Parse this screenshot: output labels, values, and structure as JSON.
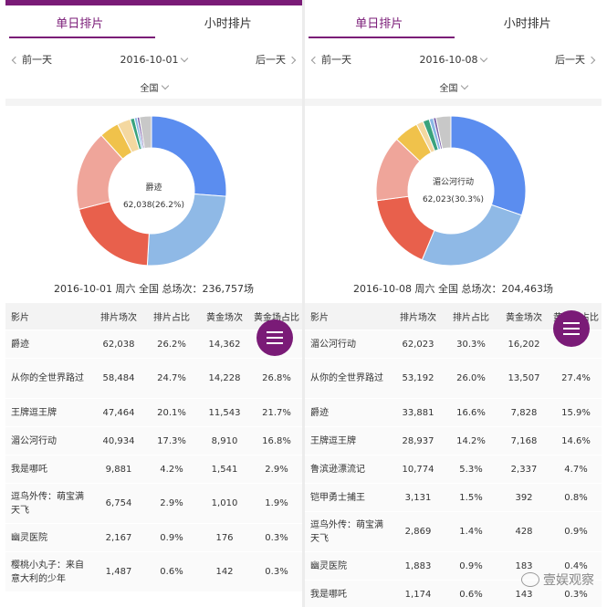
{
  "colors": {
    "brand": "#7a1b77",
    "slices": [
      "#5b8def",
      "#8fb9e6",
      "#e8604c",
      "#efa59a",
      "#f0c24b",
      "#f4d8a0",
      "#3aa37d",
      "#8ab8e6",
      "#7a5fa8",
      "#c8c8c8"
    ]
  },
  "panels": [
    {
      "tabs": [
        "单日排片",
        "小时排片"
      ],
      "prev_label": "前一天",
      "date": "2016-10-01",
      "next_label": "后一天",
      "region": "全国",
      "center_name": "爵迹",
      "center_value": "62,038(26.2%)",
      "summary": "2016-10-01 周六 全国 总场次：236,757场",
      "headers": [
        "影片",
        "排片场次",
        "排片占比",
        "黄金场次",
        "黄金场占比"
      ],
      "rows": [
        {
          "film": "爵迹",
          "shows": "62,038",
          "share": "26.2%",
          "gold": "14,362",
          "gold_share": ""
        },
        {
          "film": "从你的全世界路过",
          "shows": "58,484",
          "share": "24.7%",
          "gold": "14,228",
          "gold_share": "26.8%"
        },
        {
          "film": "王牌逗王牌",
          "shows": "47,464",
          "share": "20.1%",
          "gold": "11,543",
          "gold_share": "21.7%"
        },
        {
          "film": "湄公河行动",
          "shows": "40,934",
          "share": "17.3%",
          "gold": "8,910",
          "gold_share": "16.8%"
        },
        {
          "film": "我是哪吒",
          "shows": "9,881",
          "share": "4.2%",
          "gold": "1,541",
          "gold_share": "2.9%"
        },
        {
          "film": "逗鸟外传：萌宝满天飞",
          "shows": "6,754",
          "share": "2.9%",
          "gold": "1,010",
          "gold_share": "1.9%"
        },
        {
          "film": "幽灵医院",
          "shows": "2,167",
          "share": "0.9%",
          "gold": "176",
          "gold_share": "0.3%"
        },
        {
          "film": "樱桃小丸子：来自意大利的少年",
          "shows": "1,487",
          "share": "0.6%",
          "gold": "142",
          "gold_share": "0.3%"
        }
      ],
      "slices": [
        26.2,
        24.7,
        20.1,
        17.3,
        4.2,
        2.9,
        0.9,
        0.6,
        0.5,
        2.6
      ]
    },
    {
      "tabs": [
        "单日排片",
        "小时排片"
      ],
      "prev_label": "前一天",
      "date": "2016-10-08",
      "next_label": "后一天",
      "region": "全国",
      "center_name": "湄公河行动",
      "center_value": "62,023(30.3%)",
      "summary": "2016-10-08 周六 全国 总场次：204,463场",
      "headers": [
        "影片",
        "排片场次",
        "排片占比",
        "黄金场次",
        "黄金场占比"
      ],
      "rows": [
        {
          "film": "湄公河行动",
          "shows": "62,023",
          "share": "30.3%",
          "gold": "16,202",
          "gold_share": ""
        },
        {
          "film": "从你的全世界路过",
          "shows": "53,192",
          "share": "26.0%",
          "gold": "13,507",
          "gold_share": "27.4%"
        },
        {
          "film": "爵迹",
          "shows": "33,881",
          "share": "16.6%",
          "gold": "7,828",
          "gold_share": "15.9%"
        },
        {
          "film": "王牌逗王牌",
          "shows": "28,937",
          "share": "14.2%",
          "gold": "7,168",
          "gold_share": "14.6%"
        },
        {
          "film": "鲁滨逊漂流记",
          "shows": "10,774",
          "share": "5.3%",
          "gold": "2,337",
          "gold_share": "4.7%"
        },
        {
          "film": "铠甲勇士捕王",
          "shows": "3,131",
          "share": "1.5%",
          "gold": "392",
          "gold_share": "0.8%"
        },
        {
          "film": "逗鸟外传：萌宝满天飞",
          "shows": "2,869",
          "share": "1.4%",
          "gold": "428",
          "gold_share": "0.9%"
        },
        {
          "film": "幽灵医院",
          "shows": "1,883",
          "share": "0.9%",
          "gold": "183",
          "gold_share": "0.4%"
        },
        {
          "film": "我是哪吒",
          "shows": "1,174",
          "share": "0.6%",
          "gold": "143",
          "gold_share": "0.3%"
        }
      ],
      "slices": [
        30.3,
        26.0,
        16.6,
        14.2,
        5.3,
        1.5,
        1.4,
        0.9,
        0.6,
        3.2
      ]
    }
  ],
  "watermark": "壹娱观察"
}
